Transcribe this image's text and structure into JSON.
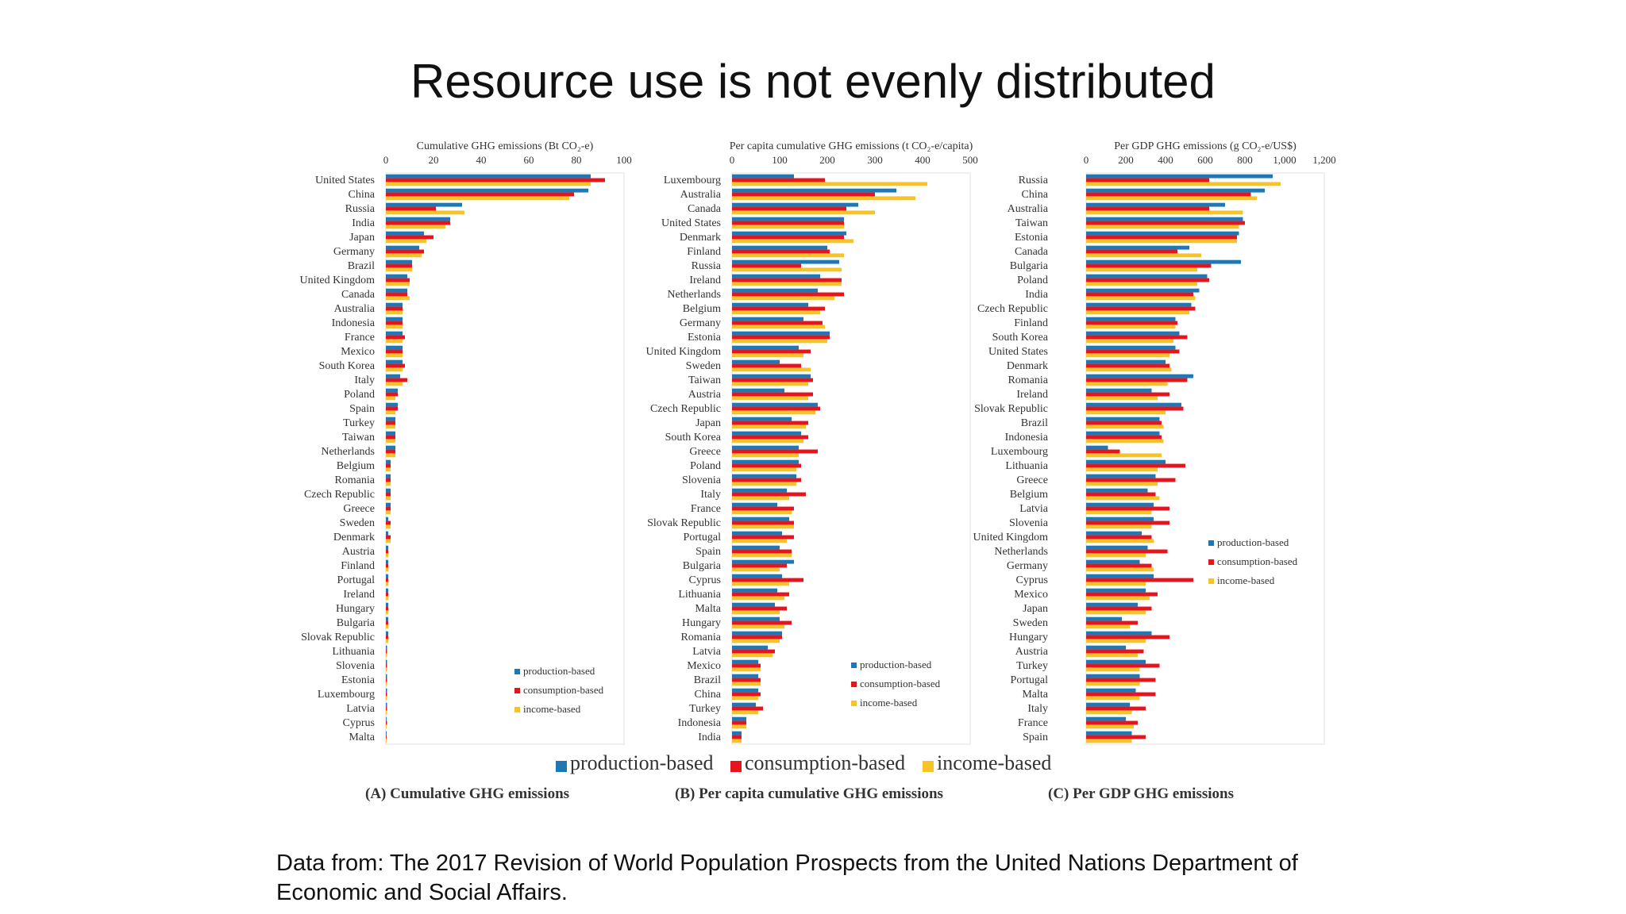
{
  "slide": {
    "title": "Resource use is not evenly distributed",
    "footer": "Data from: The 2017 Revision of World Population Prospects from the United Nations Department of Economic and Social Affairs."
  },
  "legend": {
    "items": [
      {
        "label": "production-based",
        "color": "#1f77b4"
      },
      {
        "label": "consumption-based",
        "color": "#e8141c"
      },
      {
        "label": "income-based",
        "color": "#f7c326"
      }
    ]
  },
  "panel_captions": [
    "(A) Cumulative GHG emissions",
    "(B) Per capita cumulative GHG emissions",
    "(C) Per GDP GHG emissions"
  ],
  "colors": {
    "production": "#1f77b4",
    "consumption": "#e8141c",
    "income": "#f7c326"
  },
  "chart_data": [
    {
      "type": "bar",
      "orientation": "horizontal",
      "title": "Cumulative GHG emissions (Bt CO₂-e)",
      "xlim": [
        0,
        100
      ],
      "ticks": [
        "0",
        "20",
        "40",
        "60",
        "80",
        "100"
      ],
      "legend_position": "bottom-right",
      "categories": [
        "United States",
        "China",
        "Russia",
        "India",
        "Japan",
        "Germany",
        "Brazil",
        "United Kingdom",
        "Canada",
        "Australia",
        "Indonesia",
        "France",
        "Mexico",
        "South Korea",
        "Italy",
        "Poland",
        "Spain",
        "Turkey",
        "Taiwan",
        "Netherlands",
        "Belgium",
        "Romania",
        "Czech Republic",
        "Greece",
        "Sweden",
        "Denmark",
        "Austria",
        "Finland",
        "Portugal",
        "Ireland",
        "Hungary",
        "Bulgaria",
        "Slovak Republic",
        "Lithuania",
        "Slovenia",
        "Estonia",
        "Luxembourg",
        "Latvia",
        "Cyprus",
        "Malta"
      ],
      "series": [
        {
          "name": "production-based",
          "values": [
            86,
            85,
            32,
            27,
            16,
            14,
            11,
            9,
            9,
            7,
            7,
            7,
            7,
            7,
            6,
            5,
            5,
            4,
            4,
            4,
            2,
            2,
            2,
            2,
            1,
            1,
            1,
            1,
            1,
            1,
            1,
            1,
            1,
            0.5,
            0.5,
            0.5,
            0.5,
            0.5,
            0.3,
            0.3
          ]
        },
        {
          "name": "consumption-based",
          "values": [
            92,
            79,
            21,
            27,
            20,
            16,
            11,
            10,
            9,
            7,
            7,
            8,
            7,
            8,
            9,
            5,
            5,
            4,
            4,
            4,
            2,
            2,
            2,
            2,
            2,
            2,
            1,
            1,
            1,
            1,
            1,
            1,
            1,
            0.5,
            0.5,
            0.5,
            0.5,
            0.5,
            0.5,
            0.3
          ]
        },
        {
          "name": "income-based",
          "values": [
            86,
            77,
            33,
            25,
            17,
            15,
            11,
            10,
            10,
            7,
            7,
            7,
            7,
            7,
            7,
            4,
            4,
            4,
            4,
            4,
            2,
            2,
            2,
            2,
            2,
            2,
            1,
            1,
            1,
            1,
            1,
            1,
            1,
            0.5,
            0.5,
            0.5,
            0.5,
            0.5,
            0.3,
            0.3
          ]
        }
      ]
    },
    {
      "type": "bar",
      "orientation": "horizontal",
      "title": "Per capita cumulative GHG emissions (t CO₂-e/capita)",
      "xlim": [
        0,
        500
      ],
      "ticks": [
        "0",
        "100",
        "200",
        "300",
        "400",
        "500"
      ],
      "legend_position": "bottom-right",
      "categories": [
        "Luxembourg",
        "Australia",
        "Canada",
        "United States",
        "Denmark",
        "Finland",
        "Russia",
        "Ireland",
        "Netherlands",
        "Belgium",
        "Germany",
        "Estonia",
        "United Kingdom",
        "Sweden",
        "Taiwan",
        "Austria",
        "Czech Republic",
        "Japan",
        "South Korea",
        "Greece",
        "Poland",
        "Slovenia",
        "Italy",
        "France",
        "Slovak Republic",
        "Portugal",
        "Spain",
        "Bulgaria",
        "Cyprus",
        "Lithuania",
        "Malta",
        "Hungary",
        "Romania",
        "Latvia",
        "Mexico",
        "Brazil",
        "China",
        "Turkey",
        "Indonesia",
        "India"
      ],
      "series": [
        {
          "name": "production-based",
          "values": [
            130,
            345,
            265,
            235,
            240,
            200,
            225,
            185,
            180,
            160,
            150,
            205,
            140,
            100,
            165,
            110,
            180,
            125,
            145,
            140,
            140,
            135,
            115,
            95,
            120,
            105,
            100,
            130,
            105,
            95,
            90,
            100,
            105,
            75,
            55,
            55,
            55,
            50,
            30,
            20
          ]
        },
        {
          "name": "consumption-based",
          "values": [
            195,
            300,
            240,
            235,
            235,
            205,
            145,
            230,
            235,
            195,
            190,
            205,
            165,
            145,
            170,
            170,
            185,
            160,
            160,
            180,
            145,
            145,
            155,
            130,
            130,
            130,
            125,
            115,
            150,
            120,
            115,
            125,
            105,
            90,
            60,
            60,
            60,
            65,
            30,
            20
          ]
        },
        {
          "name": "income-based",
          "values": [
            410,
            385,
            300,
            235,
            255,
            235,
            230,
            230,
            215,
            185,
            195,
            200,
            150,
            165,
            160,
            160,
            175,
            155,
            150,
            140,
            135,
            135,
            120,
            125,
            130,
            115,
            125,
            100,
            120,
            110,
            100,
            110,
            100,
            85,
            60,
            60,
            55,
            55,
            30,
            20
          ]
        }
      ]
    },
    {
      "type": "bar",
      "orientation": "horizontal",
      "title": "Per GDP GHG emissions (g CO₂-e/US$)",
      "xlim": [
        0,
        1200
      ],
      "ticks": [
        "0",
        "200",
        "400",
        "600",
        "800",
        "1,000",
        "1,200"
      ],
      "legend_position": "right",
      "categories": [
        "Russia",
        "China",
        "Australia",
        "Taiwan",
        "Estonia",
        "Canada",
        "Bulgaria",
        "Poland",
        "India",
        "Czech Republic",
        "Finland",
        "South Korea",
        "United States",
        "Denmark",
        "Romania",
        "Ireland",
        "Slovak Republic",
        "Brazil",
        "Indonesia",
        "Luxembourg",
        "Lithuania",
        "Greece",
        "Belgium",
        "Latvia",
        "Slovenia",
        "United Kingdom",
        "Netherlands",
        "Germany",
        "Cyprus",
        "Mexico",
        "Japan",
        "Sweden",
        "Hungary",
        "Austria",
        "Turkey",
        "Portugal",
        "Malta",
        "Italy",
        "France",
        "Spain"
      ],
      "series": [
        {
          "name": "production-based",
          "values": [
            940,
            900,
            700,
            790,
            770,
            520,
            780,
            610,
            570,
            530,
            450,
            470,
            450,
            400,
            540,
            330,
            480,
            370,
            370,
            110,
            400,
            350,
            310,
            340,
            340,
            280,
            310,
            270,
            340,
            300,
            260,
            180,
            330,
            200,
            300,
            270,
            250,
            220,
            200,
            230
          ]
        },
        {
          "name": "consumption-based",
          "values": [
            620,
            830,
            620,
            800,
            760,
            460,
            630,
            620,
            540,
            550,
            460,
            510,
            470,
            420,
            510,
            420,
            490,
            380,
            380,
            170,
            500,
            450,
            350,
            420,
            420,
            330,
            410,
            330,
            540,
            360,
            330,
            260,
            420,
            290,
            370,
            350,
            350,
            300,
            260,
            300
          ]
        },
        {
          "name": "income-based",
          "values": [
            980,
            860,
            790,
            770,
            760,
            580,
            560,
            560,
            550,
            520,
            450,
            440,
            420,
            430,
            410,
            360,
            400,
            390,
            390,
            380,
            360,
            360,
            370,
            330,
            330,
            340,
            300,
            340,
            300,
            320,
            300,
            220,
            300,
            260,
            270,
            270,
            270,
            230,
            240,
            230
          ]
        }
      ]
    }
  ]
}
